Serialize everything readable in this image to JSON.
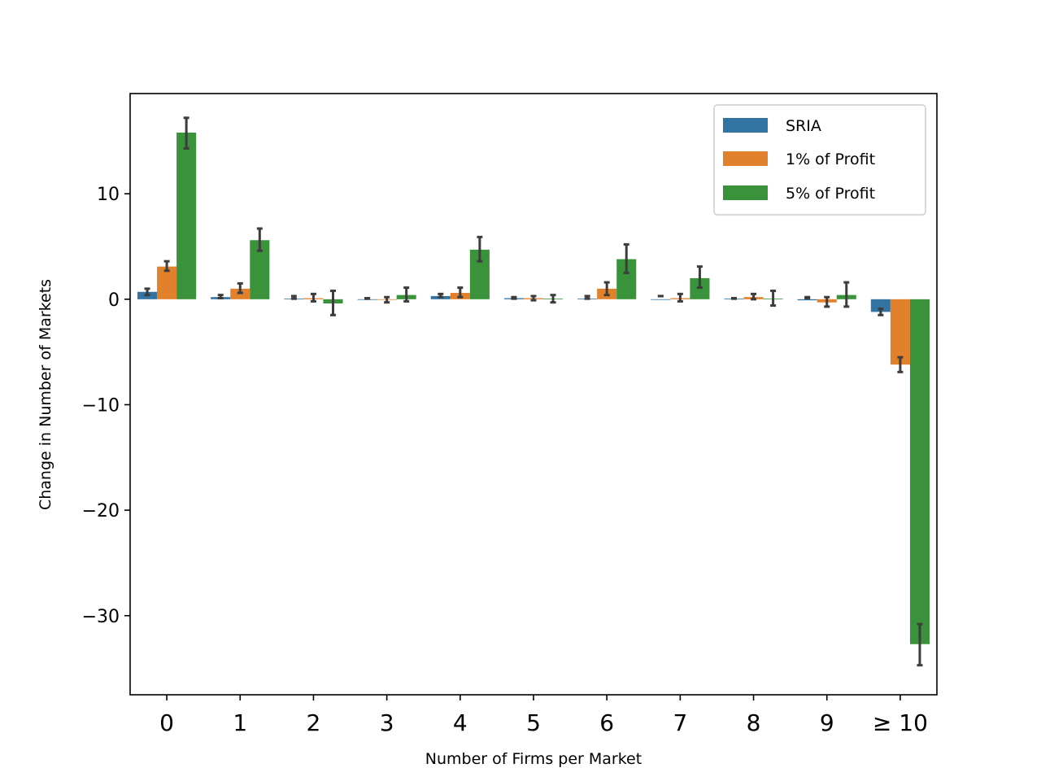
{
  "chart_data": {
    "type": "bar",
    "title": "",
    "xlabel": "Number of Firms per Market",
    "ylabel": "Change in Number of Markets",
    "categories": [
      "0",
      "1",
      "2",
      "3",
      "4",
      "5",
      "6",
      "7",
      "8",
      "9",
      "≥ 10"
    ],
    "ylim": [
      -37.5,
      19.5
    ],
    "yticks": [
      10,
      0,
      -10,
      -20,
      -30
    ],
    "ytick_labels": [
      "10",
      "0",
      "−10",
      "−20",
      "−30"
    ],
    "grid": false,
    "legend_position": "top-right",
    "series": [
      {
        "name": "SRIA",
        "color": "#3274a1",
        "values": [
          0.7,
          0.2,
          0.05,
          -0.05,
          0.3,
          0.1,
          0.05,
          -0.05,
          0.05,
          -0.1,
          -1.2
        ],
        "err_low": [
          0.4,
          0.1,
          0.05,
          0.1,
          0.2,
          0.05,
          0.05,
          0.3,
          0.1,
          0.2,
          -1.5
        ],
        "err_high": [
          1.0,
          0.4,
          0.3,
          0.05,
          0.5,
          0.2,
          0.3,
          0.3,
          0.05,
          0.1,
          -0.9
        ]
      },
      {
        "name": "1% of Profit",
        "color": "#e1812c",
        "values": [
          3.1,
          1.0,
          0.1,
          -0.05,
          0.6,
          0.1,
          1.0,
          0.1,
          0.2,
          -0.3,
          -6.2
        ],
        "err_low": [
          2.7,
          0.6,
          -0.2,
          -0.3,
          0.2,
          -0.1,
          0.4,
          -0.2,
          0.0,
          -0.7,
          -6.9
        ],
        "err_high": [
          3.6,
          1.5,
          0.5,
          0.2,
          1.1,
          0.3,
          1.6,
          0.5,
          0.5,
          0.2,
          -5.5
        ]
      },
      {
        "name": "5% of Profit",
        "color": "#3a923a",
        "values": [
          15.8,
          5.6,
          -0.4,
          0.4,
          4.7,
          0.05,
          3.8,
          2.0,
          0.05,
          0.4,
          -32.7
        ],
        "err_low": [
          14.3,
          4.6,
          -1.5,
          -0.2,
          3.6,
          -0.3,
          2.5,
          1.1,
          -0.6,
          -0.7,
          -34.7
        ],
        "err_high": [
          17.2,
          6.7,
          0.8,
          1.1,
          5.9,
          0.4,
          5.2,
          3.1,
          0.8,
          1.6,
          -30.8
        ]
      }
    ]
  }
}
